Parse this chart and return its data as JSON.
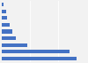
{
  "values": [
    16000,
    14500,
    5500,
    3000,
    2200,
    1600,
    1100,
    900,
    400
  ],
  "bar_color": "#4472c4",
  "background_color": "#f2f2f2",
  "grid_color": "#ffffff",
  "xlim": [
    0,
    18000
  ],
  "figsize": [
    1.0,
    0.71
  ],
  "dpi": 100
}
